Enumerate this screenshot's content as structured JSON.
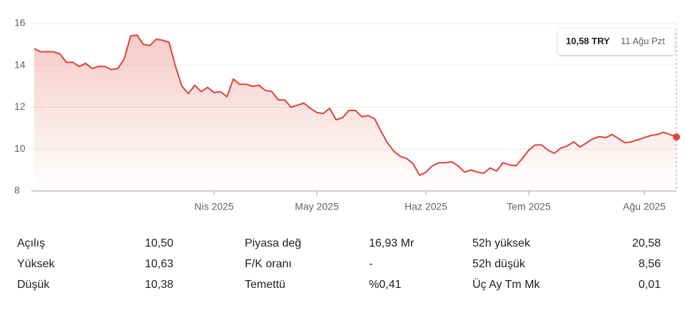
{
  "chart_data": {
    "type": "line",
    "categories": [
      null,
      null,
      null,
      null,
      null,
      null,
      null,
      null,
      null,
      null,
      null,
      null,
      null,
      null,
      null,
      null,
      null,
      null,
      null,
      null,
      null,
      null,
      null,
      null,
      null,
      null,
      null,
      null,
      "Nis 2025",
      null,
      null,
      null,
      null,
      null,
      null,
      null,
      null,
      null,
      null,
      null,
      null,
      null,
      null,
      null,
      "May 2025",
      null,
      null,
      null,
      null,
      null,
      null,
      null,
      null,
      null,
      null,
      null,
      null,
      null,
      null,
      null,
      null,
      "Haz 2025",
      null,
      null,
      null,
      null,
      null,
      null,
      null,
      null,
      null,
      null,
      null,
      null,
      null,
      null,
      null,
      "Tem 2025",
      null,
      null,
      null,
      null,
      null,
      null,
      null,
      null,
      null,
      null,
      null,
      null,
      null,
      null,
      null,
      null,
      null,
      "Ağu 2025",
      null,
      null,
      null,
      null,
      null
    ],
    "values": [
      14.8,
      14.65,
      14.65,
      14.65,
      14.55,
      14.15,
      14.15,
      13.95,
      14.1,
      13.85,
      13.95,
      13.95,
      13.8,
      13.85,
      14.3,
      15.4,
      15.45,
      15.0,
      14.95,
      15.25,
      15.2,
      15.1,
      13.95,
      13.0,
      12.65,
      13.05,
      12.75,
      12.95,
      12.7,
      12.75,
      12.5,
      13.35,
      13.1,
      13.1,
      13.0,
      13.05,
      12.8,
      12.75,
      12.35,
      12.35,
      12.0,
      12.1,
      12.2,
      11.95,
      11.75,
      11.7,
      11.95,
      11.4,
      11.5,
      11.85,
      11.85,
      11.55,
      11.6,
      11.45,
      10.85,
      10.3,
      9.9,
      9.65,
      9.55,
      9.3,
      8.75,
      8.9,
      9.2,
      9.35,
      9.35,
      9.4,
      9.2,
      8.9,
      9.0,
      8.9,
      8.85,
      9.1,
      8.95,
      9.35,
      9.25,
      9.2,
      9.55,
      9.95,
      10.2,
      10.2,
      9.95,
      9.8,
      10.05,
      10.15,
      10.35,
      10.1,
      10.3,
      10.5,
      10.6,
      10.55,
      10.7,
      10.5,
      10.3,
      10.35,
      10.45,
      10.55,
      10.65,
      10.7,
      10.8,
      10.7,
      10.58
    ],
    "color": "#db4437",
    "ylim": [
      8,
      16
    ],
    "yticks": [
      8,
      10,
      12,
      14,
      16
    ],
    "grid": true,
    "tooltip": {
      "label": "10,58 TRY",
      "date": "11 Ağu Pzt"
    }
  },
  "stats": {
    "rows": [
      [
        "Açılış",
        "10,50",
        "Piyasa değ",
        "16,93 Mr",
        "52h yüksek",
        "20,58"
      ],
      [
        "Yüksek",
        "10,63",
        "F/K oranı",
        "-",
        "52h düşük",
        "8,56"
      ],
      [
        "Düşük",
        "10,38",
        "Temettü",
        "%0,41",
        "Üç Ay Tm Mk",
        "0,01"
      ]
    ]
  }
}
